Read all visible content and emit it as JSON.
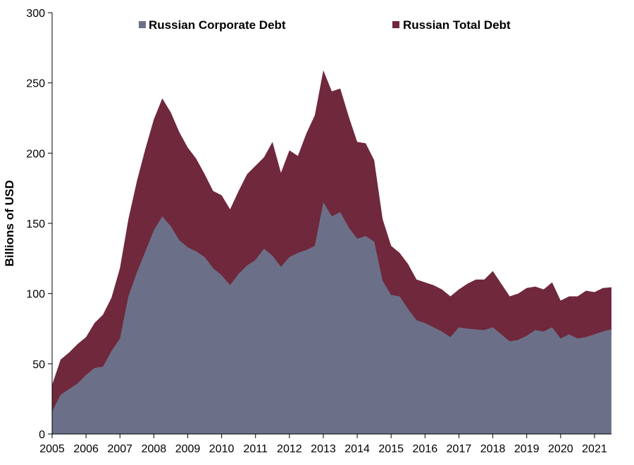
{
  "chart_data": {
    "type": "area",
    "title": "",
    "xlabel": "",
    "ylabel": "Billions of USD",
    "ylim": [
      0,
      300
    ],
    "yticks": [
      0,
      50,
      100,
      150,
      200,
      250,
      300
    ],
    "xlim": [
      2005,
      2021.5
    ],
    "xticks": [
      "2005",
      "2006",
      "2007",
      "2008",
      "2009",
      "2010",
      "2011",
      "2012",
      "2013",
      "2014",
      "2015",
      "2016",
      "2017",
      "2018",
      "2019",
      "2020",
      "2021"
    ],
    "grid": false,
    "legend_position": "top",
    "x": [
      2005.0,
      2005.25,
      2005.5,
      2005.75,
      2006.0,
      2006.25,
      2006.5,
      2006.75,
      2007.0,
      2007.25,
      2007.5,
      2007.75,
      2008.0,
      2008.25,
      2008.5,
      2008.75,
      2009.0,
      2009.25,
      2009.5,
      2009.75,
      2010.0,
      2010.25,
      2010.5,
      2010.75,
      2011.0,
      2011.25,
      2011.5,
      2011.75,
      2012.0,
      2012.25,
      2012.5,
      2012.75,
      2013.0,
      2013.25,
      2013.5,
      2013.75,
      2014.0,
      2014.25,
      2014.5,
      2014.75,
      2015.0,
      2015.25,
      2015.5,
      2015.75,
      2016.0,
      2016.25,
      2016.5,
      2016.75,
      2017.0,
      2017.25,
      2017.5,
      2017.75,
      2018.0,
      2018.25,
      2018.5,
      2018.75,
      2019.0,
      2019.25,
      2019.5,
      2019.75,
      2020.0,
      2020.25,
      2020.5,
      2020.75,
      2021.0,
      2021.25,
      2021.5
    ],
    "series": [
      {
        "name": "Russian Corporate Debt",
        "color": "#6b7088",
        "values": [
          16,
          28,
          32,
          36,
          42,
          47,
          48,
          59,
          68,
          98,
          115,
          130,
          145,
          155,
          148,
          138,
          133,
          130,
          126,
          118,
          113,
          106,
          114,
          120,
          124,
          132,
          127,
          119,
          126,
          129,
          131,
          134,
          165,
          155,
          158,
          147,
          139,
          141,
          137,
          109,
          99,
          98,
          89,
          81,
          79,
          76,
          73,
          69,
          76,
          75,
          74.5,
          74,
          76,
          71,
          66,
          67,
          70,
          74,
          73,
          76,
          68,
          71,
          68,
          69,
          71,
          73,
          74.5
        ]
      },
      {
        "name": "Russian Total Debt",
        "color": "#70283c",
        "values": [
          35,
          53,
          58,
          64,
          69,
          79,
          85,
          97,
          118,
          153,
          180,
          203,
          224,
          239,
          229,
          215,
          204,
          196,
          185,
          173,
          170,
          160,
          173,
          185,
          191,
          197,
          208,
          186,
          202,
          198,
          214,
          227,
          259,
          244,
          246,
          226,
          208,
          207,
          195,
          153,
          134,
          129,
          121,
          110,
          108,
          106,
          103,
          98,
          103,
          107,
          110,
          110,
          116,
          107,
          98,
          100,
          104,
          105,
          103,
          108,
          95,
          98,
          98,
          102,
          101,
          104,
          104.5
        ]
      }
    ]
  }
}
